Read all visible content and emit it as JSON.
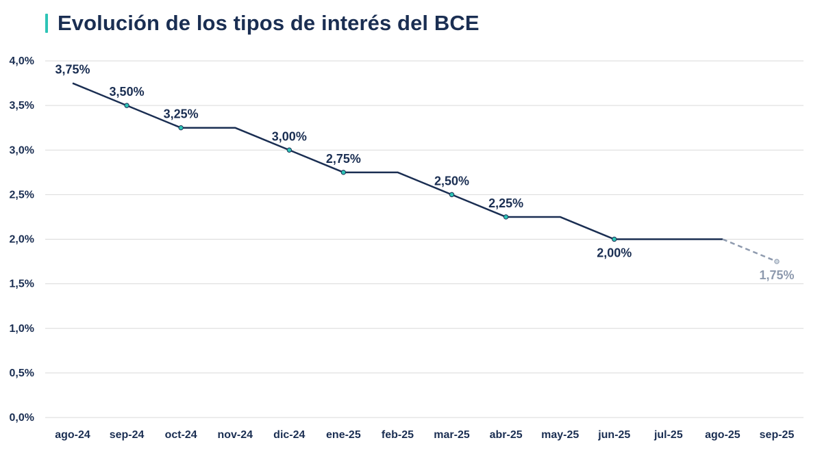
{
  "title": "Evolución de los tipos de interés del BCE",
  "colors": {
    "line": "#1a2e52",
    "projection": "#8e9aae",
    "marker": "#2ec4b6",
    "accent": "#2ec4b6",
    "grid": "#d9d9d9"
  },
  "chart_data": {
    "type": "line",
    "title": "Evolución de los tipos de interés del BCE",
    "xlabel": "",
    "ylabel": "",
    "categories": [
      "ago-24",
      "sep-24",
      "oct-24",
      "nov-24",
      "dic-24",
      "ene-25",
      "feb-25",
      "mar-25",
      "abr-25",
      "may-25",
      "jun-25",
      "jul-25",
      "ago-25",
      "sep-25"
    ],
    "y_ticks": [
      "0,0%",
      "0,5%",
      "1,0%",
      "1,5%",
      "2,0%",
      "2,5%",
      "3,0%",
      "3,5%",
      "4,0%"
    ],
    "ylim": [
      0,
      4.0
    ],
    "grid": true,
    "series": [
      {
        "values": [
          3.75,
          3.5,
          3.25,
          3.25,
          3.0,
          2.75,
          2.75,
          2.5,
          2.25,
          2.25,
          2.0,
          2.0,
          2.0,
          null
        ]
      },
      {
        "style": "dashed",
        "values": [
          null,
          null,
          null,
          null,
          null,
          null,
          null,
          null,
          null,
          null,
          null,
          null,
          2.0,
          1.75
        ]
      }
    ],
    "markers": [
      {
        "category": "sep-24",
        "value": 3.5
      },
      {
        "category": "oct-24",
        "value": 3.25
      },
      {
        "category": "dic-24",
        "value": 3.0
      },
      {
        "category": "ene-25",
        "value": 2.75
      },
      {
        "category": "mar-25",
        "value": 2.5
      },
      {
        "category": "abr-25",
        "value": 2.25
      },
      {
        "category": "jun-25",
        "value": 2.0
      },
      {
        "category": "sep-25",
        "value": 1.75
      }
    ],
    "data_labels": [
      {
        "category": "ago-24",
        "value": 3.75,
        "text": "3,75%",
        "position": "above"
      },
      {
        "category": "sep-24",
        "value": 3.5,
        "text": "3,50%",
        "position": "above"
      },
      {
        "category": "oct-24",
        "value": 3.25,
        "text": "3,25%",
        "position": "above"
      },
      {
        "category": "dic-24",
        "value": 3.0,
        "text": "3,00%",
        "position": "above"
      },
      {
        "category": "ene-25",
        "value": 2.75,
        "text": "2,75%",
        "position": "above"
      },
      {
        "category": "mar-25",
        "value": 2.5,
        "text": "2,50%",
        "position": "above"
      },
      {
        "category": "abr-25",
        "value": 2.25,
        "text": "2,25%",
        "position": "above"
      },
      {
        "category": "jun-25",
        "value": 2.0,
        "text": "2,00%",
        "position": "below"
      },
      {
        "category": "sep-25",
        "value": 1.75,
        "text": "1,75%",
        "position": "below",
        "projected": true
      }
    ]
  }
}
